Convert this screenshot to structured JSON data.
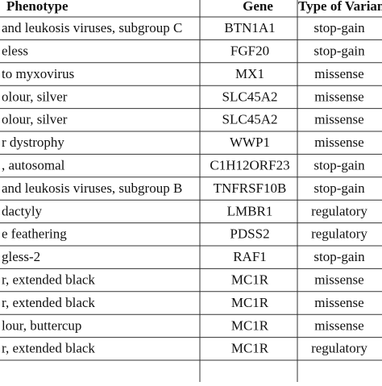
{
  "table": {
    "header": [
      "Phenotype",
      "Gene",
      "Type of Varian"
    ],
    "rows": [
      [
        "and leukosis viruses, subgroup C",
        "BTN1A1",
        "stop-gain"
      ],
      [
        "eless",
        "FGF20",
        "stop-gain"
      ],
      [
        "to myxovirus",
        "MX1",
        "missense"
      ],
      [
        "olour, silver",
        "SLC45A2",
        "missense"
      ],
      [
        "olour, silver",
        "SLC45A2",
        "missense"
      ],
      [
        "r dystrophy",
        "WWP1",
        "missense"
      ],
      [
        ", autosomal",
        "C1H12ORF23",
        "stop-gain"
      ],
      [
        "and leukosis viruses, subgroup B",
        "TNFRSF10B",
        "stop-gain"
      ],
      [
        "dactyly",
        "LMBR1",
        "regulatory"
      ],
      [
        "e feathering",
        "PDSS2",
        "regulatory"
      ],
      [
        "gless-2",
        "RAF1",
        "stop-gain"
      ],
      [
        "r, extended black",
        "MC1R",
        "missense"
      ],
      [
        "r, extended black",
        "MC1R",
        "missense"
      ],
      [
        "lour, buttercup",
        "MC1R",
        "missense"
      ],
      [
        "r, extended black",
        "MC1R",
        "regulatory"
      ]
    ]
  }
}
